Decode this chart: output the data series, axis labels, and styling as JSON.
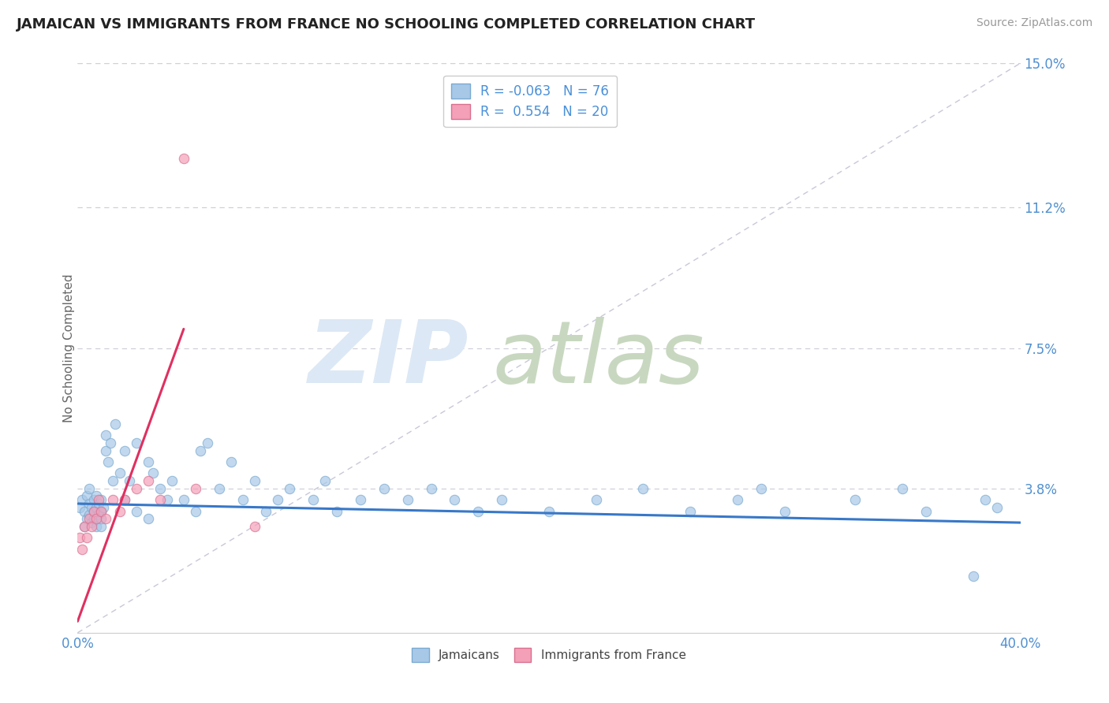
{
  "title": "JAMAICAN VS IMMIGRANTS FROM FRANCE NO SCHOOLING COMPLETED CORRELATION CHART",
  "source": "Source: ZipAtlas.com",
  "ylabel": "No Schooling Completed",
  "xlabel": "",
  "xlim": [
    0.0,
    40.0
  ],
  "ylim": [
    0.0,
    15.0
  ],
  "ytick_labels": [
    "3.8%",
    "7.5%",
    "11.2%",
    "15.0%"
  ],
  "ytick_vals": [
    3.8,
    7.5,
    11.2,
    15.0
  ],
  "r_jamaican": -0.063,
  "n_jamaican": 76,
  "r_france": 0.554,
  "n_france": 20,
  "color_jamaican": "#a8c8e8",
  "color_france": "#f4a0b8",
  "color_blue_line": "#3878c8",
  "color_pink_line": "#e03060",
  "color_diag": "#c8c8d8",
  "legend_label_jamaican": "Jamaicans",
  "legend_label_france": "Immigrants from France",
  "watermark_zip_color": "#dce8f5",
  "watermark_atlas_color": "#c8d8c0",
  "background_color": "#ffffff",
  "grid_color": "#d0d0d8",
  "jamaican_x": [
    0.1,
    0.2,
    0.3,
    0.3,
    0.4,
    0.4,
    0.5,
    0.5,
    0.5,
    0.6,
    0.6,
    0.7,
    0.7,
    0.7,
    0.8,
    0.8,
    0.8,
    0.9,
    0.9,
    1.0,
    1.0,
    1.0,
    1.0,
    1.1,
    1.2,
    1.2,
    1.3,
    1.4,
    1.5,
    1.6,
    1.8,
    2.0,
    2.0,
    2.2,
    2.5,
    2.5,
    3.0,
    3.0,
    3.2,
    3.5,
    3.8,
    4.0,
    4.5,
    5.0,
    5.2,
    5.5,
    6.0,
    6.5,
    7.0,
    7.5,
    8.0,
    8.5,
    9.0,
    10.0,
    10.5,
    11.0,
    12.0,
    13.0,
    14.0,
    15.0,
    16.0,
    17.0,
    18.0,
    20.0,
    22.0,
    24.0,
    26.0,
    28.0,
    29.0,
    30.0,
    33.0,
    35.0,
    36.0,
    38.0,
    38.5,
    39.0
  ],
  "jamaican_y": [
    3.3,
    3.5,
    2.8,
    3.2,
    3.0,
    3.6,
    3.1,
    3.4,
    3.8,
    2.9,
    3.3,
    3.0,
    3.5,
    3.2,
    2.8,
    3.3,
    3.6,
    3.1,
    3.4,
    2.8,
    3.0,
    3.2,
    3.5,
    3.3,
    4.8,
    5.2,
    4.5,
    5.0,
    4.0,
    5.5,
    4.2,
    4.8,
    3.5,
    4.0,
    5.0,
    3.2,
    4.5,
    3.0,
    4.2,
    3.8,
    3.5,
    4.0,
    3.5,
    3.2,
    4.8,
    5.0,
    3.8,
    4.5,
    3.5,
    4.0,
    3.2,
    3.5,
    3.8,
    3.5,
    4.0,
    3.2,
    3.5,
    3.8,
    3.5,
    3.8,
    3.5,
    3.2,
    3.5,
    3.2,
    3.5,
    3.8,
    3.2,
    3.5,
    3.8,
    3.2,
    3.5,
    3.8,
    3.2,
    1.5,
    3.5,
    3.3
  ],
  "france_x": [
    0.1,
    0.2,
    0.3,
    0.4,
    0.5,
    0.6,
    0.7,
    0.8,
    0.9,
    1.0,
    1.2,
    1.5,
    1.8,
    2.0,
    2.5,
    3.0,
    3.5,
    4.5,
    5.0,
    7.5
  ],
  "france_y": [
    2.5,
    2.2,
    2.8,
    2.5,
    3.0,
    2.8,
    3.2,
    3.0,
    3.5,
    3.2,
    3.0,
    3.5,
    3.2,
    3.5,
    3.8,
    4.0,
    3.5,
    12.5,
    3.8,
    2.8
  ],
  "blue_trend_x": [
    0.0,
    40.0
  ],
  "blue_trend_y": [
    3.4,
    2.9
  ],
  "pink_trend_x": [
    0.0,
    4.5
  ],
  "pink_trend_y": [
    0.3,
    8.0
  ]
}
